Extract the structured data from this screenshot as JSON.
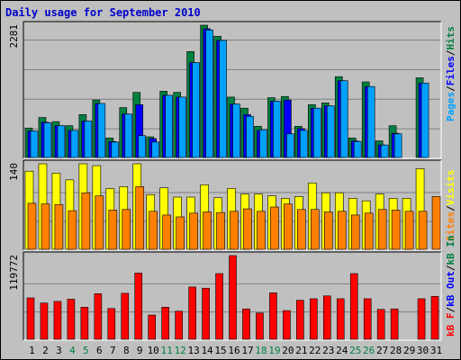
{
  "title": "Daily usage for September 2010",
  "colors": {
    "background": "#c0c0c0",
    "plot_bg": "#c0c0c0",
    "grid": "#808080",
    "pages": "#00a0ff",
    "files": "#0000ff",
    "hits": "#008040",
    "visits": "#ffff00",
    "sites": "#ff8000",
    "kb_in": "#008040",
    "kb_out": "#0000ff",
    "kb_f": "#ff0000",
    "weekend_label": "#008040",
    "weekday_label": "#000000",
    "title": "#0000cc"
  },
  "legends": {
    "top": [
      {
        "text": "Pages",
        "color": "#00a0ff"
      },
      {
        "text": "/",
        "color": "#000000"
      },
      {
        "text": "Files",
        "color": "#0000ff"
      },
      {
        "text": "/",
        "color": "#000000"
      },
      {
        "text": "Hits",
        "color": "#008040"
      }
    ],
    "middle": [
      {
        "text": "Sites",
        "color": "#ff8000"
      },
      {
        "text": "/",
        "color": "#000000"
      },
      {
        "text": "Visits",
        "color": "#ffff00"
      }
    ],
    "bottom": [
      {
        "text": "kB F",
        "color": "#ff0000"
      },
      {
        "text": "/",
        "color": "#000000"
      },
      {
        "text": "kB Out",
        "color": "#0000ff"
      },
      {
        "text": "/",
        "color": "#000000"
      },
      {
        "text": "kB In",
        "color": "#008040"
      }
    ]
  },
  "chart_data": [
    {
      "type": "bar",
      "name": "hits-files-pages",
      "categories": [
        "1",
        "2",
        "3",
        "4",
        "5",
        "6",
        "7",
        "8",
        "9",
        "10",
        "11",
        "12",
        "13",
        "14",
        "15",
        "16",
        "17",
        "18",
        "19",
        "20",
        "21",
        "22",
        "23",
        "24",
        "25",
        "26",
        "27",
        "28",
        "29",
        "30",
        "31"
      ],
      "ymax_label": "2281",
      "ylim": [
        0,
        2281
      ],
      "series": [
        {
          "name": "Hits",
          "values": [
            520,
            700,
            630,
            560,
            750,
            1000,
            350,
            870,
            1130,
            370,
            1150,
            1130,
            1830,
            2281,
            2090,
            1050,
            860,
            550,
            1040,
            1060,
            550,
            920,
            950,
            1400,
            350,
            1310,
            300,
            560,
            0,
            1380,
            0
          ]
        },
        {
          "name": "Files",
          "values": [
            470,
            620,
            560,
            480,
            640,
            940,
            290,
            760,
            920,
            340,
            1080,
            1050,
            1640,
            2220,
            2020,
            930,
            750,
            480,
            980,
            1000,
            510,
            860,
            900,
            1330,
            300,
            1230,
            230,
            430,
            0,
            1290,
            0
          ]
        },
        {
          "name": "Pages",
          "values": [
            470,
            610,
            560,
            480,
            640,
            940,
            280,
            760,
            390,
            280,
            1080,
            1050,
            1640,
            2200,
            2020,
            930,
            720,
            490,
            980,
            420,
            480,
            860,
            900,
            1330,
            290,
            1230,
            230,
            420,
            0,
            1290,
            0
          ]
        }
      ]
    },
    {
      "type": "bar",
      "name": "visits-sites",
      "categories": [
        "1",
        "2",
        "3",
        "4",
        "5",
        "6",
        "7",
        "8",
        "9",
        "10",
        "11",
        "12",
        "13",
        "14",
        "15",
        "16",
        "17",
        "18",
        "19",
        "20",
        "21",
        "22",
        "23",
        "24",
        "25",
        "26",
        "27",
        "28",
        "29",
        "30",
        "31"
      ],
      "ymax_label": "140",
      "ylim": [
        0,
        140
      ],
      "series": [
        {
          "name": "Visits",
          "values": [
            128,
            140,
            125,
            114,
            140,
            137,
            100,
            103,
            140,
            90,
            101,
            86,
            86,
            106,
            85,
            100,
            91,
            91,
            88,
            84,
            87,
            109,
            93,
            93,
            84,
            80,
            91,
            84,
            84,
            132,
            0
          ]
        },
        {
          "name": "Sites",
          "values": [
            76,
            75,
            74,
            64,
            93,
            88,
            65,
            66,
            103,
            63,
            57,
            54,
            60,
            62,
            61,
            63,
            67,
            63,
            70,
            75,
            66,
            66,
            62,
            63,
            57,
            60,
            66,
            65,
            63,
            63,
            87
          ]
        }
      ]
    },
    {
      "type": "bar",
      "name": "kb",
      "categories": [
        "1",
        "2",
        "3",
        "4",
        "5",
        "6",
        "7",
        "8",
        "9",
        "10",
        "11",
        "12",
        "13",
        "14",
        "15",
        "16",
        "17",
        "18",
        "19",
        "20",
        "21",
        "22",
        "23",
        "24",
        "25",
        "26",
        "27",
        "28",
        "29",
        "30",
        "31"
      ],
      "ymax_label": "119772",
      "ylim": [
        0,
        119772
      ],
      "series": [
        {
          "name": "kB F",
          "values": [
            59900,
            52600,
            54900,
            58000,
            46700,
            65800,
            44900,
            66400,
            95000,
            35600,
            46700,
            41100,
            75300,
            73600,
            94300,
            119772,
            44300,
            38500,
            67000,
            41900,
            56500,
            58700,
            62700,
            58700,
            94300,
            58700,
            43600,
            44300,
            0,
            58700,
            62000
          ]
        }
      ]
    }
  ],
  "x_labels": [
    {
      "text": "1",
      "weekend": false
    },
    {
      "text": "2",
      "weekend": false
    },
    {
      "text": "3",
      "weekend": false
    },
    {
      "text": "4",
      "weekend": true
    },
    {
      "text": "5",
      "weekend": true
    },
    {
      "text": "6",
      "weekend": false
    },
    {
      "text": "7",
      "weekend": false
    },
    {
      "text": "8",
      "weekend": false
    },
    {
      "text": "9",
      "weekend": false
    },
    {
      "text": "10",
      "weekend": false
    },
    {
      "text": "11",
      "weekend": true
    },
    {
      "text": "12",
      "weekend": true
    },
    {
      "text": "13",
      "weekend": false
    },
    {
      "text": "14",
      "weekend": false
    },
    {
      "text": "15",
      "weekend": false
    },
    {
      "text": "16",
      "weekend": false
    },
    {
      "text": "17",
      "weekend": false
    },
    {
      "text": "18",
      "weekend": true
    },
    {
      "text": "19",
      "weekend": true
    },
    {
      "text": "20",
      "weekend": false
    },
    {
      "text": "21",
      "weekend": false
    },
    {
      "text": "22",
      "weekend": false
    },
    {
      "text": "23",
      "weekend": false
    },
    {
      "text": "24",
      "weekend": false
    },
    {
      "text": "25",
      "weekend": true
    },
    {
      "text": "26",
      "weekend": true
    },
    {
      "text": "27",
      "weekend": false
    },
    {
      "text": "28",
      "weekend": false
    },
    {
      "text": "29",
      "weekend": false
    },
    {
      "text": "30",
      "weekend": false
    },
    {
      "text": "31",
      "weekend": false
    }
  ]
}
